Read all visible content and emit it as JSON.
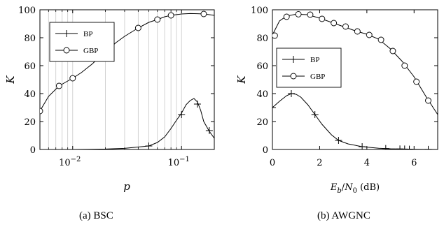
{
  "chart_data": [
    {
      "type": "line",
      "caption": "(a) BSC",
      "xlabel": "p",
      "ylabel": "K",
      "xscale": "log",
      "xlim": [
        0.005,
        0.2
      ],
      "ylim": [
        0,
        100
      ],
      "xtick_values": [
        0.01,
        0.1
      ],
      "xtick_labels": [
        "10",
        "10"
      ],
      "xtick_exponents": [
        "−2",
        "−1"
      ],
      "ytick_values": [
        0,
        20,
        40,
        60,
        80,
        100
      ],
      "ytick_labels": [
        "0",
        "20",
        "40",
        "60",
        "80",
        "100"
      ],
      "grid": "vertical-minor",
      "legend_position": "top-left",
      "series": [
        {
          "name": "BP",
          "marker": "plus",
          "x": [
            0.005,
            0.01,
            0.02,
            0.03,
            0.05,
            0.06,
            0.07,
            0.08,
            0.09,
            0.1,
            0.11,
            0.12,
            0.13,
            0.14,
            0.15,
            0.16,
            0.18,
            0.2
          ],
          "y": [
            0,
            0,
            0.3,
            0.8,
            2.5,
            5,
            9,
            15,
            21,
            26,
            32,
            35,
            36.5,
            34,
            28,
            20,
            13,
            8
          ],
          "marker_x": [
            0.05,
            0.1,
            0.14,
            0.18
          ],
          "marker_y": [
            2.5,
            25,
            32.5,
            13.5
          ]
        },
        {
          "name": "GBP",
          "marker": "circle",
          "x": [
            0.005,
            0.006,
            0.0075,
            0.009,
            0.01,
            0.012,
            0.015,
            0.02,
            0.025,
            0.03,
            0.04,
            0.05,
            0.06,
            0.07,
            0.08,
            0.1,
            0.12,
            0.14,
            0.16,
            0.18,
            0.2
          ],
          "y": [
            27.5,
            38,
            45.5,
            49,
            51,
            55,
            61,
            70,
            76.5,
            81,
            87,
            91,
            93,
            95,
            96,
            97,
            97.3,
            97.2,
            97,
            96.5,
            96
          ],
          "marker_x": [
            0.005,
            0.0075,
            0.01,
            0.02,
            0.04,
            0.06,
            0.08,
            0.16
          ],
          "marker_y": [
            27.5,
            45.5,
            51,
            70,
            87,
            93,
            96,
            97
          ]
        }
      ]
    },
    {
      "type": "line",
      "caption": "(b) AWGNC",
      "xlabel": "Eb/N0 (dB)",
      "xlabel_parts": {
        "e": "E",
        "b": "b",
        "slash": "/",
        "n": "N",
        "zero": "0",
        "unit": "(dB)"
      },
      "ylabel": "K",
      "xlim": [
        0,
        7
      ],
      "ylim": [
        0,
        100
      ],
      "xtick_values": [
        0,
        2,
        4,
        6
      ],
      "xtick_labels": [
        "0",
        "2",
        "4",
        "6"
      ],
      "ytick_values": [
        0,
        20,
        40,
        60,
        80,
        100
      ],
      "ytick_labels": [
        "0",
        "20",
        "40",
        "60",
        "80",
        "100"
      ],
      "legend_position": "center-left",
      "series": [
        {
          "name": "BP",
          "marker": "plus",
          "x": [
            0,
            0.3,
            0.6,
            0.8,
            1.0,
            1.2,
            1.5,
            1.8,
            2.1,
            2.5,
            2.8,
            3.2,
            3.8,
            4.5,
            5.0,
            5.5,
            6.0,
            6.5,
            7.0
          ],
          "y": [
            30,
            34.5,
            38.5,
            40,
            39.5,
            37.5,
            32,
            25,
            18,
            10.5,
            6.5,
            4,
            2,
            0.9,
            0.5,
            0.3,
            0.15,
            0.05,
            0
          ],
          "marker_x": [
            0,
            0.8,
            1.8,
            2.8,
            3.8,
            4.8,
            5.4,
            5.6,
            5.8,
            6.6
          ],
          "marker_y": [
            30,
            40,
            25,
            6.5,
            2,
            0.7,
            0.4,
            0.3,
            0.2,
            0.05
          ]
        },
        {
          "name": "GBP",
          "marker": "circle",
          "x": [
            0,
            0.3,
            0.6,
            1.0,
            1.5,
            2.0,
            2.5,
            3.0,
            3.5,
            4.0,
            4.5,
            5.0,
            5.5,
            6.0,
            6.5,
            7.0
          ],
          "y": [
            82,
            92,
            95.5,
            96.8,
            96.5,
            94,
            91,
            88,
            85,
            82.5,
            79,
            72,
            63,
            52,
            38,
            25
          ],
          "marker_x": [
            0.1,
            0.6,
            1.1,
            1.6,
            2.1,
            2.6,
            3.1,
            3.6,
            4.1,
            4.6,
            5.1,
            5.6,
            6.1,
            6.6
          ],
          "marker_y": [
            81.5,
            95,
            96.8,
            96.5,
            93.5,
            90.5,
            88,
            84.5,
            82,
            78.5,
            70.5,
            60,
            48.5,
            35
          ]
        }
      ]
    }
  ]
}
